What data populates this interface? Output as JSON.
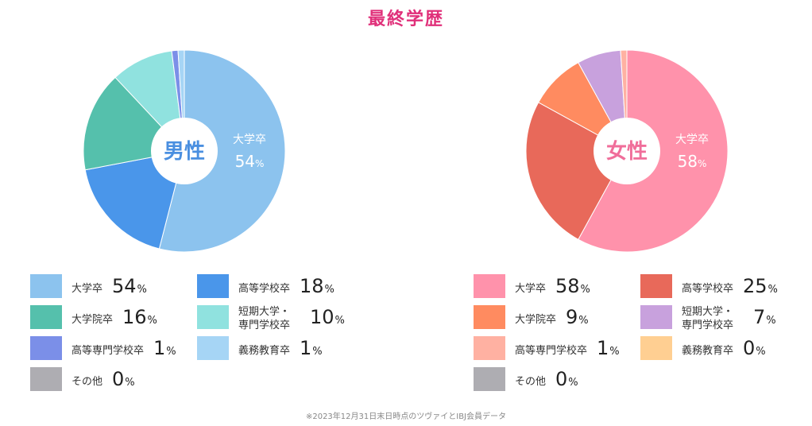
{
  "title": "最終学歴",
  "note": "※2023年12月31日末日時点のツヴァイとIBJ会員データ",
  "percent_symbol": "%",
  "chart_data": [
    {
      "type": "pie",
      "center_label": "男性",
      "center_color": "#4a8fe0",
      "highlight_label": "大学卒",
      "highlight_value": 54,
      "series": [
        {
          "name": "大学卒",
          "value": 54,
          "color": "#8cc3ee"
        },
        {
          "name": "高等学校卒",
          "value": 18,
          "color": "#4a96ea"
        },
        {
          "name": "大学院卒",
          "value": 16,
          "color": "#55c0ac"
        },
        {
          "name": "短期大学・\n専門学校卒",
          "value": 10,
          "color": "#90e2df"
        },
        {
          "name": "高等専門学校卒",
          "value": 1,
          "color": "#7b8fe8"
        },
        {
          "name": "義務教育卒",
          "value": 1,
          "color": "#a6d5f5"
        },
        {
          "name": "その他",
          "value": 0,
          "color": "#aeadb2"
        }
      ]
    },
    {
      "type": "pie",
      "center_label": "女性",
      "center_color": "#f06e9a",
      "highlight_label": "大学卒",
      "highlight_value": 58,
      "series": [
        {
          "name": "大学卒",
          "value": 58,
          "color": "#ff92ab"
        },
        {
          "name": "高等学校卒",
          "value": 25,
          "color": "#e8695a"
        },
        {
          "name": "大学院卒",
          "value": 9,
          "color": "#ff8b60"
        },
        {
          "name": "短期大学・\n専門学校卒",
          "value": 7,
          "color": "#c8a1dd"
        },
        {
          "name": "高等専門学校卒",
          "value": 1,
          "color": "#ffb1a2"
        },
        {
          "name": "義務教育卒",
          "value": 0,
          "color": "#ffcf92"
        },
        {
          "name": "その他",
          "value": 0,
          "color": "#aeadb2"
        }
      ]
    }
  ]
}
